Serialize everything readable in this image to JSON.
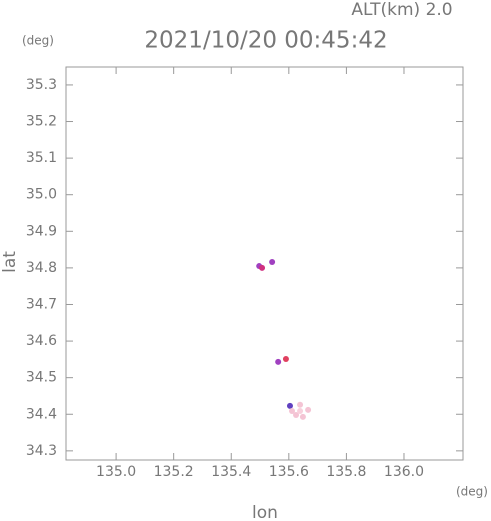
{
  "chart_data": {
    "type": "scatter",
    "title": "2021/10/20 00:45:42",
    "subtitle": "ALT(km) 2.0",
    "x_label": "lon",
    "y_label": "lat",
    "x_unit": "(deg)",
    "y_unit": "(deg)",
    "xlim": [
      134.826,
      136.205
    ],
    "ylim": [
      34.275,
      35.349
    ],
    "xticks": [
      {
        "value": 135,
        "label": "135.0"
      },
      135.2,
      135.4,
      135.6,
      135.8,
      {
        "value": 136,
        "label": "136.0"
      }
    ],
    "yticks": [
      34.3,
      34.4,
      34.5,
      34.6,
      34.7,
      34.8,
      34.9,
      {
        "value": 35,
        "label": "35.0"
      },
      35.1,
      35.2,
      35.3
    ],
    "grid": false,
    "series": [
      {
        "x": [
          135.497,
          135.507,
          135.542,
          135.563,
          135.59,
          135.604,
          135.639,
          135.667,
          135.625,
          135.649,
          135.611,
          135.639
        ],
        "values": [
          34.805,
          34.8,
          34.816,
          34.543,
          34.551,
          34.423,
          34.426,
          34.412,
          34.398,
          34.393,
          34.409,
          34.409
        ],
        "colors": [
          "#a040c0",
          "#d03080",
          "#a040c0",
          "#a040c0",
          "#e04060",
          "#6040c0",
          "#f4c4d4",
          "#f4c4d4",
          "#f4c4d4",
          "#f4c4d4",
          "#f4c4d4",
          "#f8d0dc"
        ]
      }
    ]
  }
}
